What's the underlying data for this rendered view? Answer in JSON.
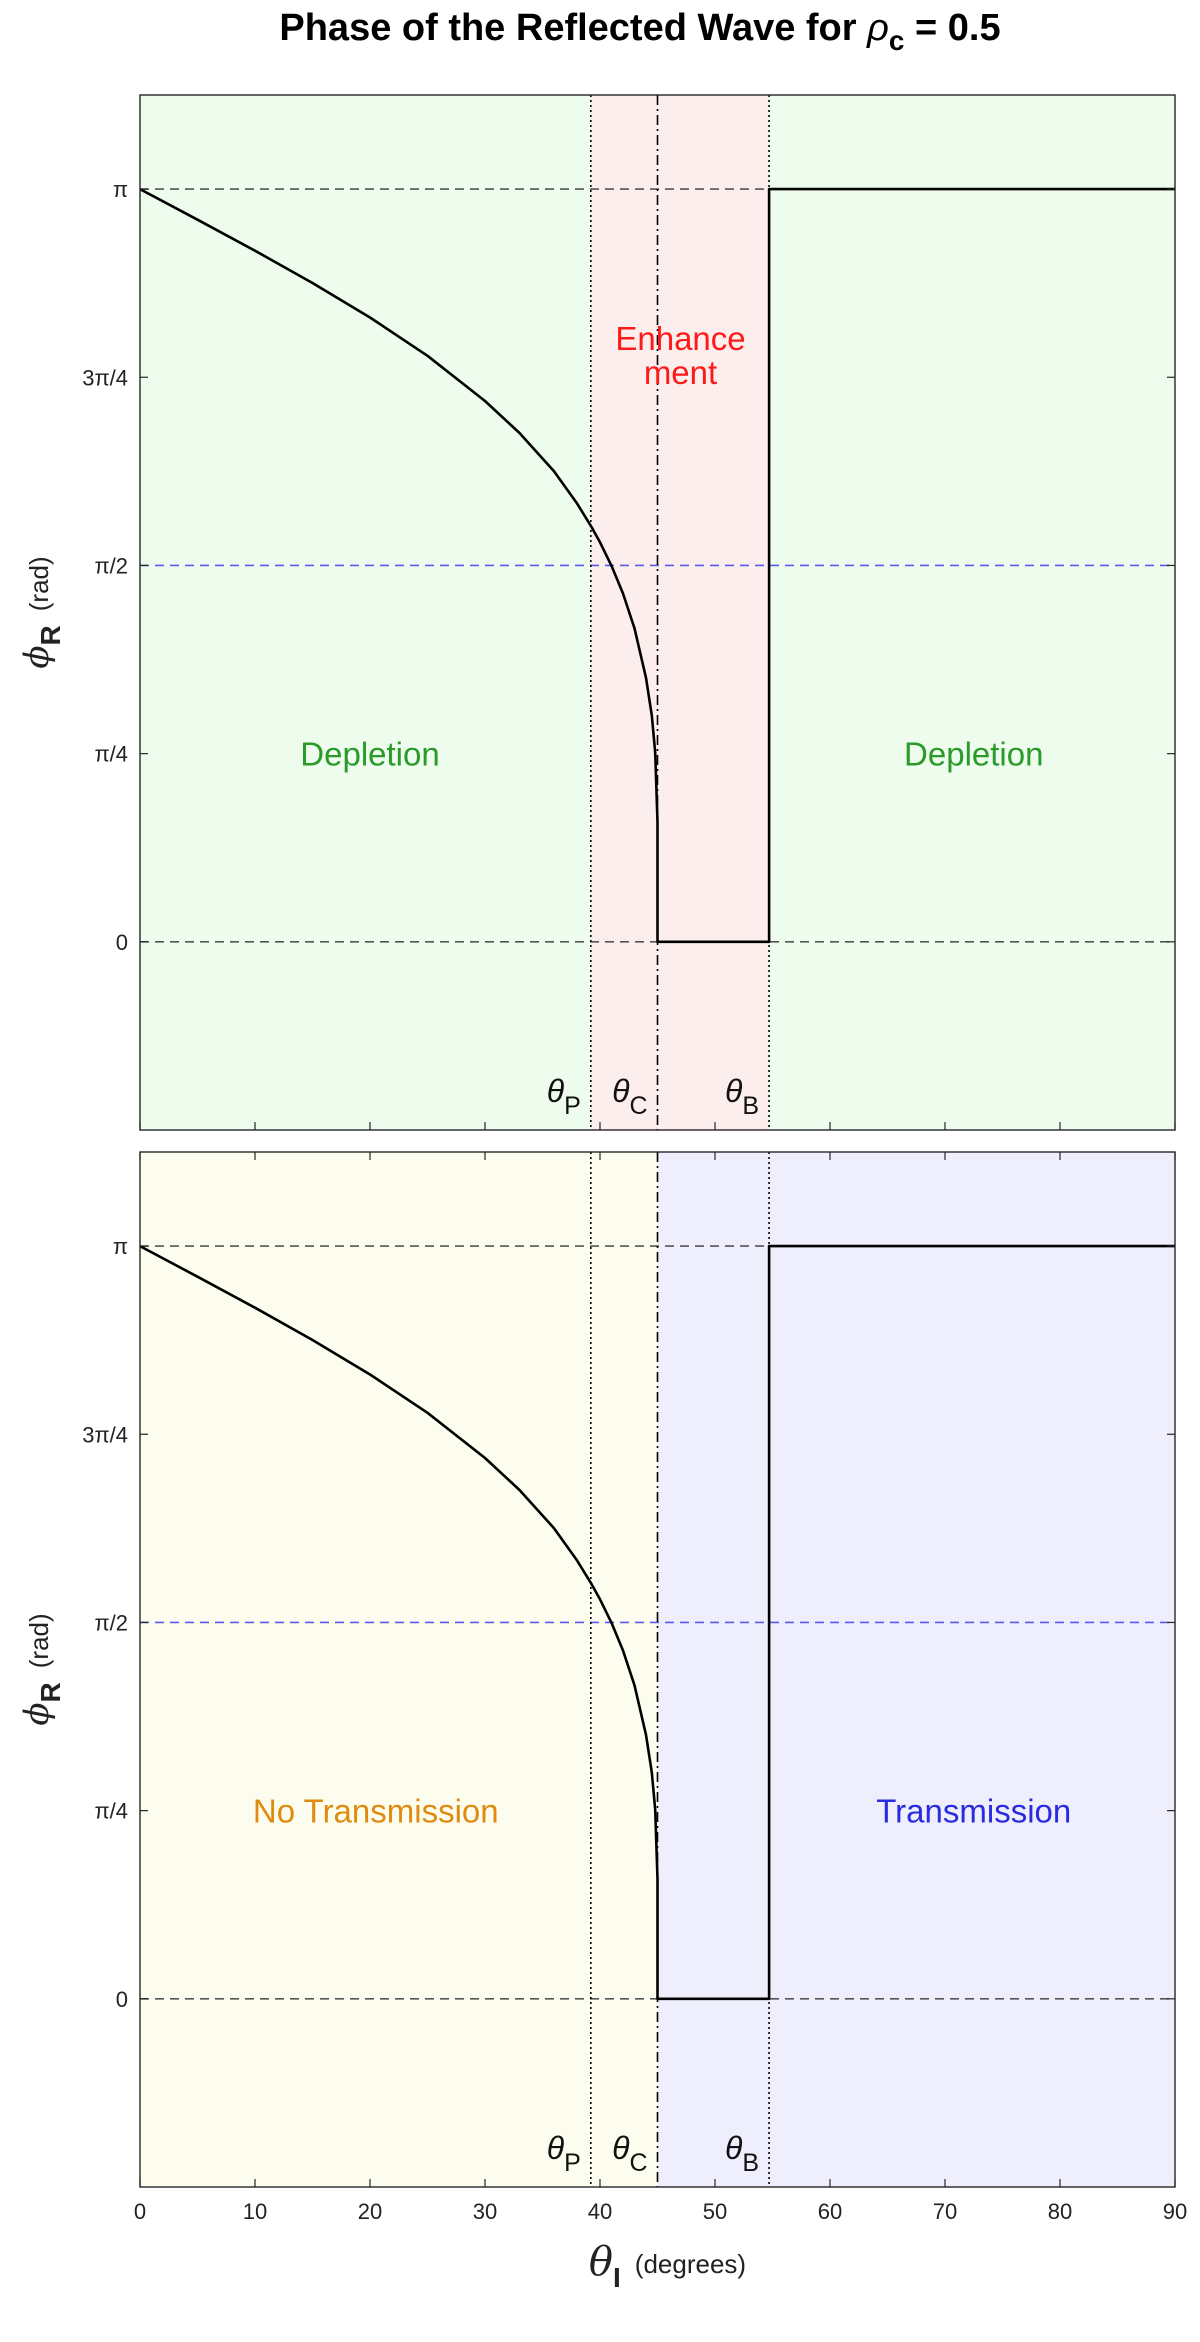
{
  "figure_title": {
    "prefix": "Phase of the Reflected Wave for ",
    "symbol": "ρ",
    "subscript": "c",
    "suffix": " = 0.5"
  },
  "colors": {
    "curve": "#000000",
    "halfpi_line": "#5a5af0",
    "ref_line": "#555555",
    "depletion_text": "#2a9a2a",
    "enhancement_text": "#ff1a1a",
    "no_transmission_text": "#e08a10",
    "transmission_text": "#2a2ae0",
    "green_region": "#eefcee",
    "red_region": "#fdeeee",
    "yellow_region": "#fcfdee",
    "blue_region": "#eeeefc"
  },
  "chart_data": [
    {
      "type": "line",
      "panel": "top",
      "title": "",
      "xlim": [
        0,
        90
      ],
      "ylim": [
        -0.7854,
        3.5343
      ],
      "y_ticks": [
        {
          "value": 0,
          "label": "0"
        },
        {
          "value": 0.7854,
          "label": "π/4"
        },
        {
          "value": 1.5708,
          "label": "π/2"
        },
        {
          "value": 2.3562,
          "label": "3π/4"
        },
        {
          "value": 3.1416,
          "label": "π"
        }
      ],
      "ylabel": {
        "symbol": "ϕ",
        "subscript": "R",
        "unit": "(rad)"
      },
      "ref_lines": [
        {
          "y": 0,
          "style": "dashed"
        },
        {
          "y": 1.5708,
          "style": "dashed-blue"
        },
        {
          "y": 3.1416,
          "style": "dashed"
        }
      ],
      "angle_markers": [
        {
          "x": 39.2,
          "symbol": "θ",
          "subscript": "P",
          "style": "dotted"
        },
        {
          "x": 45.0,
          "symbol": "θ",
          "subscript": "C",
          "style": "dashdot"
        },
        {
          "x": 54.7,
          "symbol": "θ",
          "subscript": "B",
          "style": "dotted"
        }
      ],
      "regions": [
        {
          "x": [
            0,
            39.2
          ],
          "fill": "green"
        },
        {
          "x": [
            39.2,
            54.7
          ],
          "fill": "red"
        },
        {
          "x": [
            54.7,
            90
          ],
          "fill": "green"
        }
      ],
      "annotations": [
        {
          "lines": [
            "Depletion"
          ],
          "x": 20,
          "y": 0.7854,
          "color": "depletion"
        },
        {
          "lines": [
            "Enhance",
            "ment"
          ],
          "x": 47.0,
          "y": 2.45,
          "color": "enhancement"
        },
        {
          "lines": [
            "Depletion"
          ],
          "x": 72.5,
          "y": 0.7854,
          "color": "depletion"
        }
      ],
      "series": [
        {
          "x": [
            0,
            5,
            10,
            15,
            20,
            25,
            30,
            33,
            36,
            38,
            39.2,
            40,
            41,
            42,
            43,
            44,
            44.5,
            44.8,
            45,
            45,
            54.7,
            54.7,
            90
          ],
          "y": [
            3.1416,
            3.0138,
            2.8845,
            2.7498,
            2.6056,
            2.4457,
            2.2573,
            2.1238,
            1.9642,
            1.8299,
            1.7363,
            1.6675,
            1.5695,
            1.4536,
            1.3086,
            1.102,
            0.9448,
            0.7896,
            0.5,
            0,
            0,
            3.1416,
            3.1416
          ]
        }
      ]
    },
    {
      "type": "line",
      "panel": "bottom",
      "title": "",
      "xlim": [
        0,
        90
      ],
      "ylim": [
        -0.7854,
        3.5343
      ],
      "x_ticks": [
        0,
        10,
        20,
        30,
        40,
        50,
        60,
        70,
        80,
        90
      ],
      "xlabel": {
        "symbol": "θ",
        "subscript": "I",
        "unit": "(degrees)"
      },
      "y_ticks": [
        {
          "value": 0,
          "label": "0"
        },
        {
          "value": 0.7854,
          "label": "π/4"
        },
        {
          "value": 1.5708,
          "label": "π/2"
        },
        {
          "value": 2.3562,
          "label": "3π/4"
        },
        {
          "value": 3.1416,
          "label": "π"
        }
      ],
      "ylabel": {
        "symbol": "ϕ",
        "subscript": "R",
        "unit": "(rad)"
      },
      "ref_lines": [
        {
          "y": 0,
          "style": "dashed"
        },
        {
          "y": 1.5708,
          "style": "dashed-blue"
        },
        {
          "y": 3.1416,
          "style": "dashed"
        }
      ],
      "angle_markers": [
        {
          "x": 39.2,
          "symbol": "θ",
          "subscript": "P",
          "style": "dotted"
        },
        {
          "x": 45.0,
          "symbol": "θ",
          "subscript": "C",
          "style": "dashdot"
        },
        {
          "x": 54.7,
          "symbol": "θ",
          "subscript": "B",
          "style": "dotted"
        }
      ],
      "regions": [
        {
          "x": [
            0,
            45.0
          ],
          "fill": "yellow"
        },
        {
          "x": [
            45.0,
            90
          ],
          "fill": "blue"
        }
      ],
      "annotations": [
        {
          "lines": [
            "No Transmission"
          ],
          "x": 20.5,
          "y": 0.7854,
          "color": "no_transmission"
        },
        {
          "lines": [
            "Transmission"
          ],
          "x": 72.5,
          "y": 0.7854,
          "color": "transmission"
        }
      ],
      "series": [
        {
          "x": [
            0,
            5,
            10,
            15,
            20,
            25,
            30,
            33,
            36,
            38,
            39.2,
            40,
            41,
            42,
            43,
            44,
            44.5,
            44.8,
            45,
            45,
            54.7,
            54.7,
            90
          ],
          "y": [
            3.1416,
            3.0138,
            2.8845,
            2.7498,
            2.6056,
            2.4457,
            2.2573,
            2.1238,
            1.9642,
            1.8299,
            1.7363,
            1.6675,
            1.5695,
            1.4536,
            1.3086,
            1.102,
            0.9448,
            0.7896,
            0.5,
            0,
            0,
            3.1416,
            3.1416
          ]
        }
      ]
    }
  ]
}
